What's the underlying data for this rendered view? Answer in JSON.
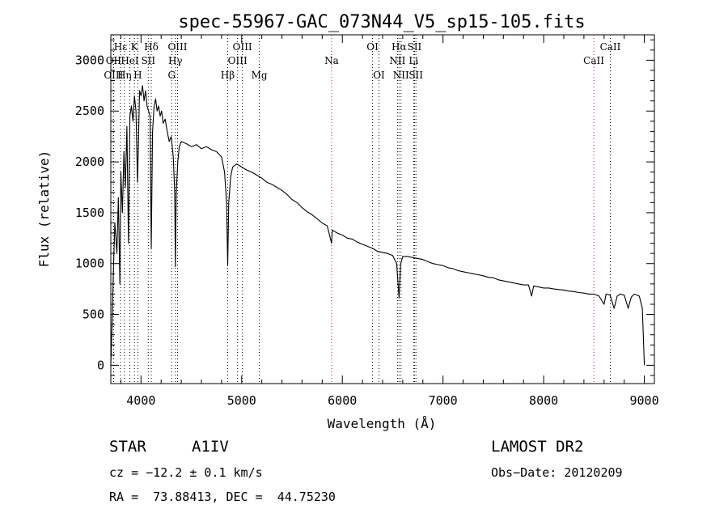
{
  "chart_data": {
    "type": "line",
    "title": "spec-55967-GAC_073N44_V5_sp15-105.fits",
    "xlabel": "Wavelength (Å)",
    "ylabel": "Flux (relative)",
    "xlim": [
      3700,
      9100
    ],
    "ylim": [
      -180,
      3250
    ],
    "xticks": [
      4000,
      5000,
      6000,
      7000,
      8000,
      9000
    ],
    "yticks": [
      0,
      500,
      1000,
      1500,
      2000,
      2500,
      3000
    ],
    "grid": false,
    "legend": "none",
    "series": [
      {
        "color": "#000000",
        "points": [
          [
            3700,
            0
          ],
          [
            3715,
            500
          ],
          [
            3725,
            900
          ],
          [
            3740,
            1400
          ],
          [
            3760,
            1100
          ],
          [
            3775,
            1650
          ],
          [
            3790,
            800
          ],
          [
            3800,
            1900
          ],
          [
            3815,
            1500
          ],
          [
            3830,
            2100
          ],
          [
            3845,
            1750
          ],
          [
            3860,
            2350
          ],
          [
            3875,
            1200
          ],
          [
            3890,
            2450
          ],
          [
            3905,
            2550
          ],
          [
            3920,
            2400
          ],
          [
            3935,
            2650
          ],
          [
            3950,
            2500
          ],
          [
            3965,
            1800
          ],
          [
            3975,
            2200
          ],
          [
            3985,
            2700
          ],
          [
            4000,
            2650
          ],
          [
            4015,
            2750
          ],
          [
            4030,
            2600
          ],
          [
            4045,
            2700
          ],
          [
            4060,
            2550
          ],
          [
            4075,
            2500
          ],
          [
            4090,
            2450
          ],
          [
            4102,
            1150
          ],
          [
            4115,
            2300
          ],
          [
            4130,
            2550
          ],
          [
            4145,
            2620
          ],
          [
            4160,
            2500
          ],
          [
            4175,
            2550
          ],
          [
            4190,
            2450
          ],
          [
            4205,
            2500
          ],
          [
            4220,
            2380
          ],
          [
            4240,
            2420
          ],
          [
            4260,
            2300
          ],
          [
            4280,
            2200
          ],
          [
            4300,
            2250
          ],
          [
            4320,
            2050
          ],
          [
            4335,
            1700
          ],
          [
            4341,
            970
          ],
          [
            4350,
            1700
          ],
          [
            4365,
            2000
          ],
          [
            4380,
            2150
          ],
          [
            4400,
            2200
          ],
          [
            4450,
            2180
          ],
          [
            4500,
            2150
          ],
          [
            4550,
            2170
          ],
          [
            4600,
            2130
          ],
          [
            4650,
            2150
          ],
          [
            4700,
            2120
          ],
          [
            4750,
            2100
          ],
          [
            4800,
            2050
          ],
          [
            4830,
            1900
          ],
          [
            4850,
            1600
          ],
          [
            4861,
            980
          ],
          [
            4872,
            1600
          ],
          [
            4890,
            1850
          ],
          [
            4910,
            1950
          ],
          [
            4950,
            1980
          ],
          [
            5000,
            1950
          ],
          [
            5050,
            1920
          ],
          [
            5100,
            1900
          ],
          [
            5150,
            1870
          ],
          [
            5200,
            1840
          ],
          [
            5250,
            1800
          ],
          [
            5300,
            1780
          ],
          [
            5350,
            1750
          ],
          [
            5400,
            1720
          ],
          [
            5450,
            1680
          ],
          [
            5500,
            1630
          ],
          [
            5550,
            1600
          ],
          [
            5600,
            1550
          ],
          [
            5650,
            1510
          ],
          [
            5700,
            1480
          ],
          [
            5750,
            1440
          ],
          [
            5800,
            1400
          ],
          [
            5850,
            1370
          ],
          [
            5893,
            1200
          ],
          [
            5900,
            1330
          ],
          [
            5950,
            1300
          ],
          [
            6000,
            1280
          ],
          [
            6050,
            1250
          ],
          [
            6100,
            1240
          ],
          [
            6150,
            1210
          ],
          [
            6200,
            1190
          ],
          [
            6250,
            1170
          ],
          [
            6300,
            1150
          ],
          [
            6350,
            1120
          ],
          [
            6400,
            1110
          ],
          [
            6450,
            1100
          ],
          [
            6500,
            1080
          ],
          [
            6540,
            1000
          ],
          [
            6563,
            660
          ],
          [
            6580,
            1000
          ],
          [
            6600,
            1070
          ],
          [
            6650,
            1070
          ],
          [
            6700,
            1060
          ],
          [
            6750,
            1050
          ],
          [
            6800,
            1040
          ],
          [
            6850,
            1020
          ],
          [
            6900,
            1000
          ],
          [
            6950,
            990
          ],
          [
            7000,
            980
          ],
          [
            7050,
            960
          ],
          [
            7100,
            950
          ],
          [
            7150,
            930
          ],
          [
            7200,
            920
          ],
          [
            7250,
            910
          ],
          [
            7300,
            900
          ],
          [
            7350,
            890
          ],
          [
            7400,
            880
          ],
          [
            7450,
            865
          ],
          [
            7500,
            860
          ],
          [
            7550,
            840
          ],
          [
            7600,
            830
          ],
          [
            7650,
            820
          ],
          [
            7700,
            810
          ],
          [
            7750,
            800
          ],
          [
            7800,
            790
          ],
          [
            7850,
            790
          ],
          [
            7880,
            680
          ],
          [
            7900,
            780
          ],
          [
            7950,
            770
          ],
          [
            8000,
            760
          ],
          [
            8050,
            760
          ],
          [
            8100,
            750
          ],
          [
            8150,
            745
          ],
          [
            8200,
            740
          ],
          [
            8250,
            730
          ],
          [
            8300,
            725
          ],
          [
            8350,
            715
          ],
          [
            8400,
            710
          ],
          [
            8450,
            700
          ],
          [
            8500,
            700
          ],
          [
            8550,
            680
          ],
          [
            8600,
            600
          ],
          [
            8620,
            700
          ],
          [
            8660,
            690
          ],
          [
            8700,
            560
          ],
          [
            8730,
            680
          ],
          [
            8760,
            700
          ],
          [
            8800,
            690
          ],
          [
            8840,
            560
          ],
          [
            8870,
            670
          ],
          [
            8900,
            700
          ],
          [
            8950,
            680
          ],
          [
            8980,
            560
          ],
          [
            9000,
            0
          ]
        ]
      }
    ],
    "lines": [
      {
        "label": "Hε",
        "x": 3797,
        "row": 0,
        "color": "#000000"
      },
      {
        "label": "K",
        "x": 3934,
        "row": 0,
        "color": "#000000"
      },
      {
        "label": "Hδ",
        "x": 4102,
        "row": 0,
        "color": "#000000"
      },
      {
        "label": "OIII",
        "x": 4363,
        "row": 0,
        "color": "#000000"
      },
      {
        "label": "OIII",
        "x": 5007,
        "row": 0,
        "color": "#000000"
      },
      {
        "label": "OI",
        "x": 6300,
        "row": 0,
        "color": "#000000"
      },
      {
        "label": "Hα",
        "x": 6563,
        "row": 0,
        "color": "#000000"
      },
      {
        "label": "SII",
        "x": 6717,
        "row": 0,
        "color": "#000000"
      },
      {
        "label": "CaII",
        "x": 8662,
        "row": 0,
        "color": "#000000"
      },
      {
        "label": "OII",
        "x": 3727,
        "row": 1,
        "color": "#000000"
      },
      {
        "label": "HeI",
        "x": 3889,
        "row": 1,
        "color": "#000000"
      },
      {
        "label": "SII",
        "x": 4072,
        "row": 1,
        "color": "#000000"
      },
      {
        "label": "Hγ",
        "x": 4341,
        "row": 1,
        "color": "#000000"
      },
      {
        "label": "OIII",
        "x": 4959,
        "row": 1,
        "color": "#000000"
      },
      {
        "label": "Na",
        "x": 5893,
        "row": 1,
        "color": "#ff0000"
      },
      {
        "label": "NII",
        "x": 6548,
        "row": 1,
        "color": "#000000"
      },
      {
        "label": "Li",
        "x": 6708,
        "row": 1,
        "color": "#000000"
      },
      {
        "label": "CaII",
        "x": 8498,
        "row": 1,
        "color": "#ff0000"
      },
      {
        "label": "OIII",
        "x": 3727,
        "row": 2,
        "color": "#000000"
      },
      {
        "label": "Hη",
        "x": 3835,
        "row": 2,
        "color": "#000000"
      },
      {
        "label": "H",
        "x": 3968,
        "row": 2,
        "color": "#000000"
      },
      {
        "label": "G",
        "x": 4305,
        "row": 2,
        "color": "#000000"
      },
      {
        "label": "Hβ",
        "x": 4861,
        "row": 2,
        "color": "#000000"
      },
      {
        "label": "Mg",
        "x": 5175,
        "row": 2,
        "color": "#000000"
      },
      {
        "label": "OI",
        "x": 6364,
        "row": 2,
        "color": "#000000"
      },
      {
        "label": "NII",
        "x": 6583,
        "row": 2,
        "color": "#000000"
      },
      {
        "label": "SII",
        "x": 6731,
        "row": 2,
        "color": "#000000"
      }
    ]
  },
  "info": {
    "class": "STAR",
    "subclass": "A1IV",
    "survey": "LAMOST DR2",
    "cz": "cz = −12.2 ± 0.1 km/s",
    "obs_date": "Obs−Date: 20120209",
    "coords": "RA =  73.88413, DEC =  44.75230"
  }
}
